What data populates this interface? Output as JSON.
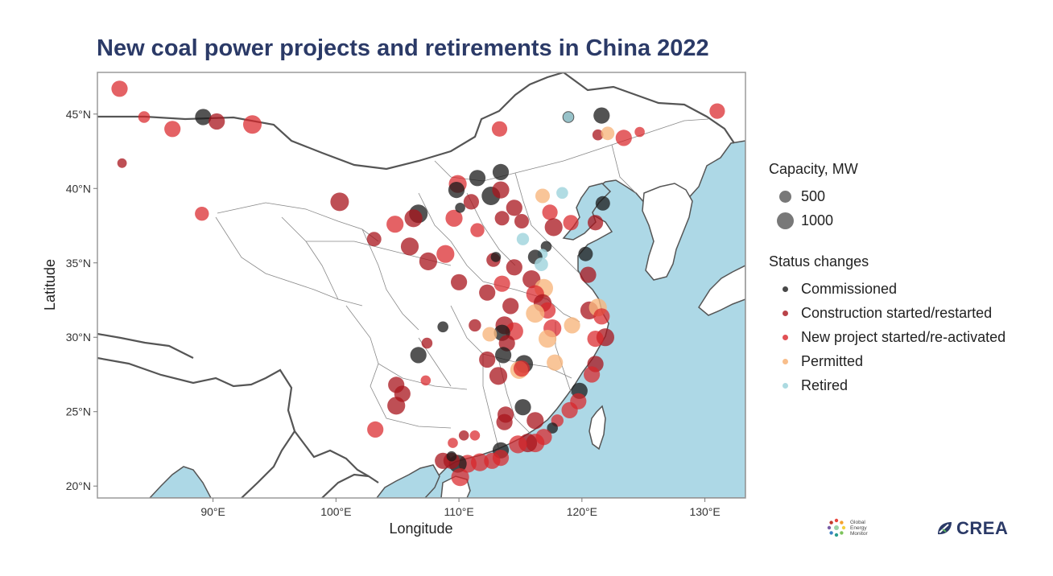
{
  "title": "New coal power projects and retirements in China 2022",
  "axes": {
    "xlabel": "Longitude",
    "ylabel": "Latitude",
    "xticks": [
      {
        "lon": 90,
        "label": "90°E"
      },
      {
        "lon": 100,
        "label": "100°E"
      },
      {
        "lon": 110,
        "label": "110°E"
      },
      {
        "lon": 120,
        "label": "120°E"
      },
      {
        "lon": 130,
        "label": "130°E"
      }
    ],
    "yticks": [
      {
        "lat": 20,
        "label": "20°N"
      },
      {
        "lat": 25,
        "label": "25°N"
      },
      {
        "lat": 30,
        "label": "30°N"
      },
      {
        "lat": 35,
        "label": "35°N"
      },
      {
        "lat": 40,
        "label": "40°N"
      },
      {
        "lat": 45,
        "label": "45°N"
      }
    ],
    "xlim": [
      80.6,
      133.3
    ],
    "ylim": [
      19.2,
      47.8
    ]
  },
  "legend": {
    "capacity_title": "Capacity, MW",
    "capacity_items": [
      {
        "label": "500",
        "mw": 500
      },
      {
        "label": "1000",
        "mw": 1000
      }
    ],
    "status_title": "Status changes",
    "status_items": [
      {
        "key": "commissioned",
        "label": "Commissioned"
      },
      {
        "key": "construction",
        "label": "Construction started/restarted"
      },
      {
        "key": "new",
        "label": "New project started/re-activated"
      },
      {
        "key": "permitted",
        "label": "Permitted"
      },
      {
        "key": "retired",
        "label": "Retired"
      }
    ]
  },
  "colors": {
    "title": "#2b3a67",
    "sea": "#add8e6",
    "land": "#ffffff",
    "commissioned": "#1a1a1a",
    "construction": "#a8141c",
    "new": "#d9252a",
    "permitted": "#f7b77e",
    "retired": "#a3d6de"
  },
  "logos": {
    "gem_lines": [
      "Global",
      "Energy",
      "Monitor"
    ],
    "crea": "CREA"
  },
  "chart_data": {
    "type": "scatter",
    "title": "New coal power projects and retirements in China 2022",
    "xlabel": "Longitude",
    "ylabel": "Latitude",
    "xlim": [
      80.6,
      133.3
    ],
    "ylim": [
      19.2,
      47.8
    ],
    "size_variable": "Capacity, MW",
    "color_variable": "Status changes",
    "points": [
      {
        "lon": 82.4,
        "lat": 46.7,
        "status": "new",
        "mw": 700
      },
      {
        "lon": 84.4,
        "lat": 44.8,
        "status": "new",
        "mw": 250
      },
      {
        "lon": 82.6,
        "lat": 41.7,
        "status": "construction",
        "mw": 120
      },
      {
        "lon": 86.7,
        "lat": 44.0,
        "status": "new",
        "mw": 700
      },
      {
        "lon": 89.2,
        "lat": 44.8,
        "status": "commissioned",
        "mw": 700
      },
      {
        "lon": 90.3,
        "lat": 44.5,
        "status": "construction",
        "mw": 700
      },
      {
        "lon": 93.2,
        "lat": 44.3,
        "status": "new",
        "mw": 1000
      },
      {
        "lon": 89.1,
        "lat": 38.3,
        "status": "new",
        "mw": 450
      },
      {
        "lon": 100.3,
        "lat": 39.1,
        "status": "construction",
        "mw": 1000
      },
      {
        "lon": 103.1,
        "lat": 36.6,
        "status": "construction",
        "mw": 500
      },
      {
        "lon": 104.8,
        "lat": 37.6,
        "status": "new",
        "mw": 800
      },
      {
        "lon": 106.7,
        "lat": 38.3,
        "status": "commissioned",
        "mw": 1000
      },
      {
        "lon": 106.3,
        "lat": 38.0,
        "status": "construction",
        "mw": 900
      },
      {
        "lon": 106.0,
        "lat": 36.1,
        "status": "construction",
        "mw": 900
      },
      {
        "lon": 107.5,
        "lat": 35.1,
        "status": "construction",
        "mw": 900
      },
      {
        "lon": 108.9,
        "lat": 35.6,
        "status": "new",
        "mw": 900
      },
      {
        "lon": 109.6,
        "lat": 38.0,
        "status": "new",
        "mw": 800
      },
      {
        "lon": 109.9,
        "lat": 40.3,
        "status": "new",
        "mw": 900
      },
      {
        "lon": 109.8,
        "lat": 39.9,
        "status": "commissioned",
        "mw": 700
      },
      {
        "lon": 111.5,
        "lat": 40.7,
        "status": "commissioned",
        "mw": 700
      },
      {
        "lon": 113.4,
        "lat": 41.1,
        "status": "commissioned",
        "mw": 700
      },
      {
        "lon": 112.6,
        "lat": 39.5,
        "status": "commissioned",
        "mw": 1000
      },
      {
        "lon": 113.4,
        "lat": 39.9,
        "status": "construction",
        "mw": 800
      },
      {
        "lon": 111.0,
        "lat": 39.1,
        "status": "construction",
        "mw": 600
      },
      {
        "lon": 110.1,
        "lat": 38.7,
        "status": "commissioned",
        "mw": 150
      },
      {
        "lon": 111.5,
        "lat": 37.2,
        "status": "new",
        "mw": 450
      },
      {
        "lon": 113.5,
        "lat": 38.0,
        "status": "construction",
        "mw": 500
      },
      {
        "lon": 114.5,
        "lat": 38.7,
        "status": "construction",
        "mw": 700
      },
      {
        "lon": 115.1,
        "lat": 37.8,
        "status": "construction",
        "mw": 500
      },
      {
        "lon": 116.8,
        "lat": 39.5,
        "status": "permitted",
        "mw": 500
      },
      {
        "lon": 118.4,
        "lat": 39.7,
        "status": "retired",
        "mw": 250
      },
      {
        "lon": 117.4,
        "lat": 38.4,
        "status": "new",
        "mw": 600
      },
      {
        "lon": 117.7,
        "lat": 37.4,
        "status": "construction",
        "mw": 900
      },
      {
        "lon": 119.1,
        "lat": 37.7,
        "status": "new",
        "mw": 600
      },
      {
        "lon": 121.7,
        "lat": 39.0,
        "status": "commissioned",
        "mw": 500
      },
      {
        "lon": 121.1,
        "lat": 37.7,
        "status": "construction",
        "mw": 600
      },
      {
        "lon": 115.2,
        "lat": 36.6,
        "status": "retired",
        "mw": 300
      },
      {
        "lon": 117.1,
        "lat": 36.1,
        "status": "commissioned",
        "mw": 200
      },
      {
        "lon": 116.8,
        "lat": 35.6,
        "status": "retired",
        "mw": 150
      },
      {
        "lon": 116.2,
        "lat": 35.4,
        "status": "commissioned",
        "mw": 500
      },
      {
        "lon": 116.7,
        "lat": 34.9,
        "status": "retired",
        "mw": 400
      },
      {
        "lon": 114.5,
        "lat": 34.7,
        "status": "construction",
        "mw": 700
      },
      {
        "lon": 112.8,
        "lat": 35.2,
        "status": "construction",
        "mw": 450
      },
      {
        "lon": 113.0,
        "lat": 35.4,
        "status": "commissioned",
        "mw": 150
      },
      {
        "lon": 120.3,
        "lat": 35.6,
        "status": "commissioned",
        "mw": 500
      },
      {
        "lon": 120.5,
        "lat": 34.2,
        "status": "construction",
        "mw": 700
      },
      {
        "lon": 110.0,
        "lat": 33.7,
        "status": "construction",
        "mw": 700
      },
      {
        "lon": 112.3,
        "lat": 33.0,
        "status": "construction",
        "mw": 700
      },
      {
        "lon": 113.5,
        "lat": 33.6,
        "status": "new",
        "mw": 700
      },
      {
        "lon": 115.9,
        "lat": 33.9,
        "status": "construction",
        "mw": 900
      },
      {
        "lon": 116.9,
        "lat": 33.3,
        "status": "permitted",
        "mw": 1000
      },
      {
        "lon": 116.2,
        "lat": 32.9,
        "status": "new",
        "mw": 900
      },
      {
        "lon": 116.8,
        "lat": 32.3,
        "status": "construction",
        "mw": 900
      },
      {
        "lon": 117.2,
        "lat": 31.8,
        "status": "new",
        "mw": 700
      },
      {
        "lon": 116.2,
        "lat": 31.6,
        "status": "permitted",
        "mw": 1000
      },
      {
        "lon": 114.2,
        "lat": 32.1,
        "status": "construction",
        "mw": 700
      },
      {
        "lon": 113.7,
        "lat": 30.8,
        "status": "construction",
        "mw": 900
      },
      {
        "lon": 114.5,
        "lat": 30.4,
        "status": "new",
        "mw": 900
      },
      {
        "lon": 113.5,
        "lat": 30.3,
        "status": "commissioned",
        "mw": 700
      },
      {
        "lon": 113.9,
        "lat": 29.6,
        "status": "construction",
        "mw": 700
      },
      {
        "lon": 112.5,
        "lat": 30.2,
        "status": "permitted",
        "mw": 500
      },
      {
        "lon": 111.3,
        "lat": 30.8,
        "status": "construction",
        "mw": 300
      },
      {
        "lon": 108.7,
        "lat": 30.7,
        "status": "commissioned",
        "mw": 200
      },
      {
        "lon": 107.4,
        "lat": 29.6,
        "status": "construction",
        "mw": 200
      },
      {
        "lon": 106.7,
        "lat": 28.8,
        "status": "commissioned",
        "mw": 700
      },
      {
        "lon": 112.3,
        "lat": 28.5,
        "status": "construction",
        "mw": 700
      },
      {
        "lon": 113.6,
        "lat": 28.8,
        "status": "commissioned",
        "mw": 700
      },
      {
        "lon": 115.3,
        "lat": 28.2,
        "status": "commissioned",
        "mw": 900
      },
      {
        "lon": 114.9,
        "lat": 27.8,
        "status": "permitted",
        "mw": 900
      },
      {
        "lon": 115.1,
        "lat": 27.9,
        "status": "new",
        "mw": 700
      },
      {
        "lon": 113.2,
        "lat": 27.4,
        "status": "construction",
        "mw": 900
      },
      {
        "lon": 117.6,
        "lat": 30.6,
        "status": "new",
        "mw": 900
      },
      {
        "lon": 117.2,
        "lat": 29.9,
        "status": "permitted",
        "mw": 900
      },
      {
        "lon": 119.2,
        "lat": 30.8,
        "status": "permitted",
        "mw": 700
      },
      {
        "lon": 117.8,
        "lat": 28.3,
        "status": "permitted",
        "mw": 700
      },
      {
        "lon": 120.6,
        "lat": 31.8,
        "status": "construction",
        "mw": 900
      },
      {
        "lon": 121.3,
        "lat": 32.0,
        "status": "permitted",
        "mw": 900
      },
      {
        "lon": 121.6,
        "lat": 31.4,
        "status": "new",
        "mw": 700
      },
      {
        "lon": 121.9,
        "lat": 30.0,
        "status": "construction",
        "mw": 900
      },
      {
        "lon": 121.1,
        "lat": 29.9,
        "status": "new",
        "mw": 700
      },
      {
        "lon": 121.1,
        "lat": 28.2,
        "status": "construction",
        "mw": 700
      },
      {
        "lon": 120.8,
        "lat": 27.5,
        "status": "new",
        "mw": 700
      },
      {
        "lon": 119.8,
        "lat": 26.4,
        "status": "commissioned",
        "mw": 700
      },
      {
        "lon": 119.7,
        "lat": 25.7,
        "status": "new",
        "mw": 700
      },
      {
        "lon": 119.0,
        "lat": 25.1,
        "status": "new",
        "mw": 700
      },
      {
        "lon": 118.0,
        "lat": 24.4,
        "status": "new",
        "mw": 300
      },
      {
        "lon": 117.6,
        "lat": 23.9,
        "status": "commissioned",
        "mw": 200
      },
      {
        "lon": 116.9,
        "lat": 23.3,
        "status": "new",
        "mw": 700
      },
      {
        "lon": 116.2,
        "lat": 22.9,
        "status": "new",
        "mw": 1000
      },
      {
        "lon": 115.6,
        "lat": 22.9,
        "status": "construction",
        "mw": 1000
      },
      {
        "lon": 114.8,
        "lat": 22.8,
        "status": "new",
        "mw": 900
      },
      {
        "lon": 116.2,
        "lat": 24.4,
        "status": "construction",
        "mw": 800
      },
      {
        "lon": 115.2,
        "lat": 25.3,
        "status": "commissioned",
        "mw": 700
      },
      {
        "lon": 113.8,
        "lat": 24.8,
        "status": "construction",
        "mw": 700
      },
      {
        "lon": 113.7,
        "lat": 24.3,
        "status": "construction",
        "mw": 700
      },
      {
        "lon": 113.4,
        "lat": 22.4,
        "status": "commissioned",
        "mw": 700
      },
      {
        "lon": 113.4,
        "lat": 21.9,
        "status": "new",
        "mw": 700
      },
      {
        "lon": 112.7,
        "lat": 21.7,
        "status": "new",
        "mw": 700
      },
      {
        "lon": 111.7,
        "lat": 21.6,
        "status": "new",
        "mw": 900
      },
      {
        "lon": 110.7,
        "lat": 21.5,
        "status": "new",
        "mw": 900
      },
      {
        "lon": 109.9,
        "lat": 21.5,
        "status": "commissioned",
        "mw": 900
      },
      {
        "lon": 109.4,
        "lat": 21.7,
        "status": "construction",
        "mw": 700
      },
      {
        "lon": 108.7,
        "lat": 21.7,
        "status": "construction",
        "mw": 700
      },
      {
        "lon": 110.1,
        "lat": 20.6,
        "status": "new",
        "mw": 900
      },
      {
        "lon": 109.5,
        "lat": 22.9,
        "status": "new",
        "mw": 150
      },
      {
        "lon": 110.4,
        "lat": 23.4,
        "status": "construction",
        "mw": 150
      },
      {
        "lon": 111.3,
        "lat": 23.4,
        "status": "new",
        "mw": 150
      },
      {
        "lon": 109.4,
        "lat": 22.0,
        "status": "commissioned",
        "mw": 150
      },
      {
        "lon": 104.9,
        "lat": 26.8,
        "status": "construction",
        "mw": 700
      },
      {
        "lon": 105.4,
        "lat": 26.2,
        "status": "construction",
        "mw": 700
      },
      {
        "lon": 104.9,
        "lat": 25.4,
        "status": "construction",
        "mw": 900
      },
      {
        "lon": 103.2,
        "lat": 23.8,
        "status": "new",
        "mw": 700
      },
      {
        "lon": 107.3,
        "lat": 27.1,
        "status": "new",
        "mw": 150
      },
      {
        "lon": 118.9,
        "lat": 44.8,
        "status": "commissioned",
        "mw": 250
      },
      {
        "lon": 118.9,
        "lat": 44.8,
        "status": "retired",
        "mw": 150
      },
      {
        "lon": 113.3,
        "lat": 44.0,
        "status": "new",
        "mw": 600
      },
      {
        "lon": 121.6,
        "lat": 44.9,
        "status": "commissioned",
        "mw": 700
      },
      {
        "lon": 121.3,
        "lat": 43.6,
        "status": "construction",
        "mw": 200
      },
      {
        "lon": 122.1,
        "lat": 43.7,
        "status": "permitted",
        "mw": 400
      },
      {
        "lon": 123.4,
        "lat": 43.4,
        "status": "new",
        "mw": 700
      },
      {
        "lon": 124.7,
        "lat": 43.8,
        "status": "new",
        "mw": 150
      },
      {
        "lon": 131.0,
        "lat": 45.2,
        "status": "new",
        "mw": 600
      }
    ]
  }
}
